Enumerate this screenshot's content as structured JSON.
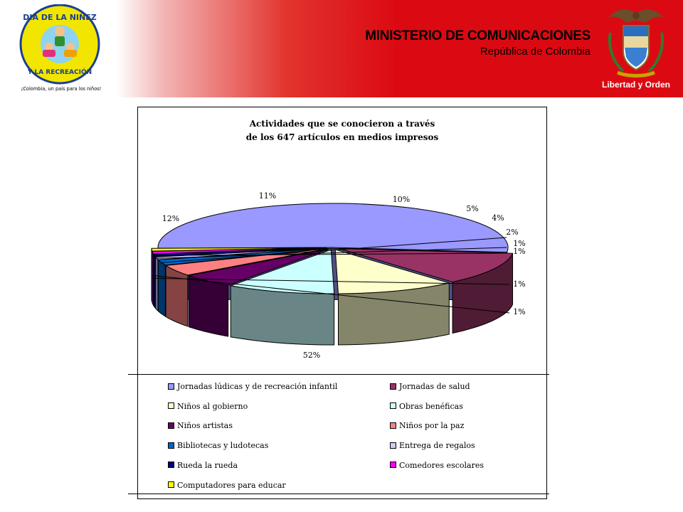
{
  "header": {
    "logo_left": {
      "lines": [
        "DIA DE LA NIÑEZ",
        "Y LA RECREACIÓN"
      ],
      "tagline": "¡Colombia, un país para los niños!"
    },
    "ministry_title": "MINISTERIO DE COMUNICACIONES",
    "ministry_subtitle": "República de Colombia",
    "crest_caption": "Libertad y Orden"
  },
  "chart_data": {
    "type": "pie",
    "style": "3d-exploded",
    "title": "Actividades que se conocieron a través de los 647 artículos en medios impresos",
    "title_lines": [
      "Actividades que se conocieron a través",
      "de los 647 artículos en medios impresos"
    ],
    "series": [
      {
        "name": "Jornadas lúdicas y de recreación infantil",
        "value": 52,
        "label": "52%",
        "color": "#9999ff"
      },
      {
        "name": "Jornadas de salud",
        "value": 12,
        "label": "12%",
        "color": "#993366"
      },
      {
        "name": "Niños al gobierno",
        "value": 11,
        "label": "11%",
        "color": "#ffffcc"
      },
      {
        "name": "Obras benéficas",
        "value": 10,
        "label": "10%",
        "color": "#ccffff"
      },
      {
        "name": "Niños artistas",
        "value": 5,
        "label": "5%",
        "color": "#660066"
      },
      {
        "name": "Niños por la paz",
        "value": 4,
        "label": "4%",
        "color": "#ff8080"
      },
      {
        "name": "Bibliotecas y ludotecas",
        "value": 2,
        "label": "2%",
        "color": "#0066cc"
      },
      {
        "name": "Entrega de regalos",
        "value": 1,
        "label": "1%",
        "color": "#ccccff"
      },
      {
        "name": "Rueda la rueda",
        "value": 1,
        "label": "1%",
        "color": "#000080"
      },
      {
        "name": "Comedores escolares",
        "value": 1,
        "label": "1%",
        "color": "#ff00ff"
      },
      {
        "name": "Computadores para educar",
        "value": 1,
        "label": "1%",
        "color": "#ffff00"
      }
    ],
    "legend_position": "bottom"
  }
}
